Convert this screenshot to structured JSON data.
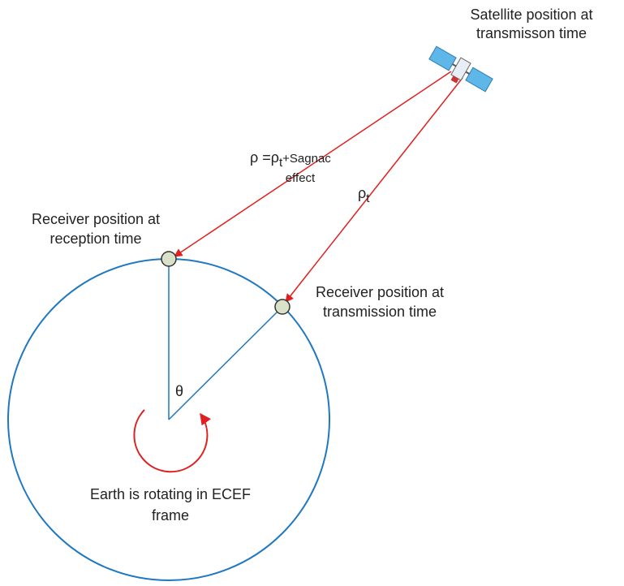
{
  "labels": {
    "satellite": [
      "Satellite position at",
      "transmisson time"
    ],
    "rho": {
      "main": "ρ =ρ",
      "sub": "t",
      "rest": "+Sagnac",
      "line2": "effect"
    },
    "rho_t": {
      "main": "ρ",
      "sub": "t"
    },
    "receiver_reception": [
      "Receiver position  at",
      "reception time"
    ],
    "receiver_transmission": [
      "Receiver position at",
      "transmission time"
    ],
    "theta": "θ",
    "earth": [
      "Earth is rotating in ECEF",
      "frame"
    ]
  }
}
